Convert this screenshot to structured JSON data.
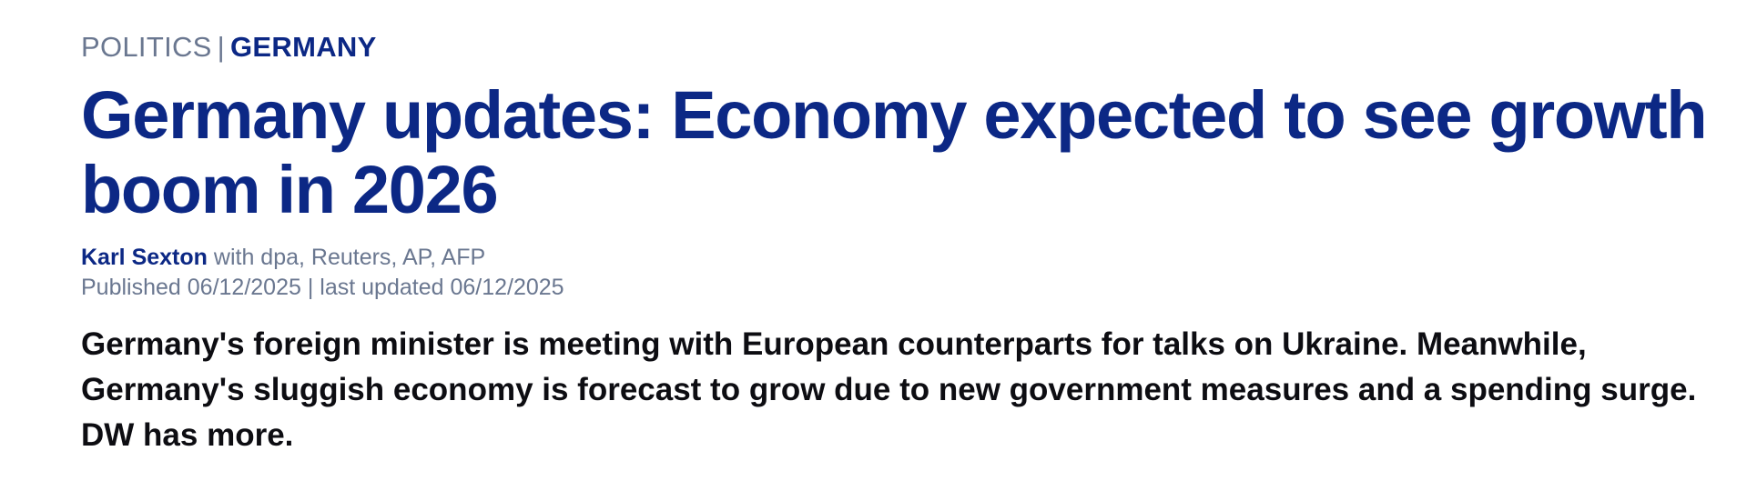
{
  "breadcrumb": {
    "section": "POLITICS",
    "separator": "|",
    "subsection": "GERMANY"
  },
  "headline": "Germany updates: Economy expected to see growth boom in 2026",
  "byline": {
    "author": "Karl Sexton",
    "agencies": "with dpa, Reuters, AP, AFP"
  },
  "dates": {
    "published_label": "Published",
    "published": "06/12/2025",
    "separator": "|",
    "updated_label": "last updated",
    "updated": "06/12/2025"
  },
  "lead": "Germany's foreign minister is meeting with European counterparts for talks on Ukraine. Meanwhile, Germany's sluggish economy is forecast to grow due to new government measures and a spending surge. DW has more.",
  "colors": {
    "brand_blue": "#0c2885",
    "muted_gray": "#6a7790",
    "body_text": "#0d0d12"
  }
}
